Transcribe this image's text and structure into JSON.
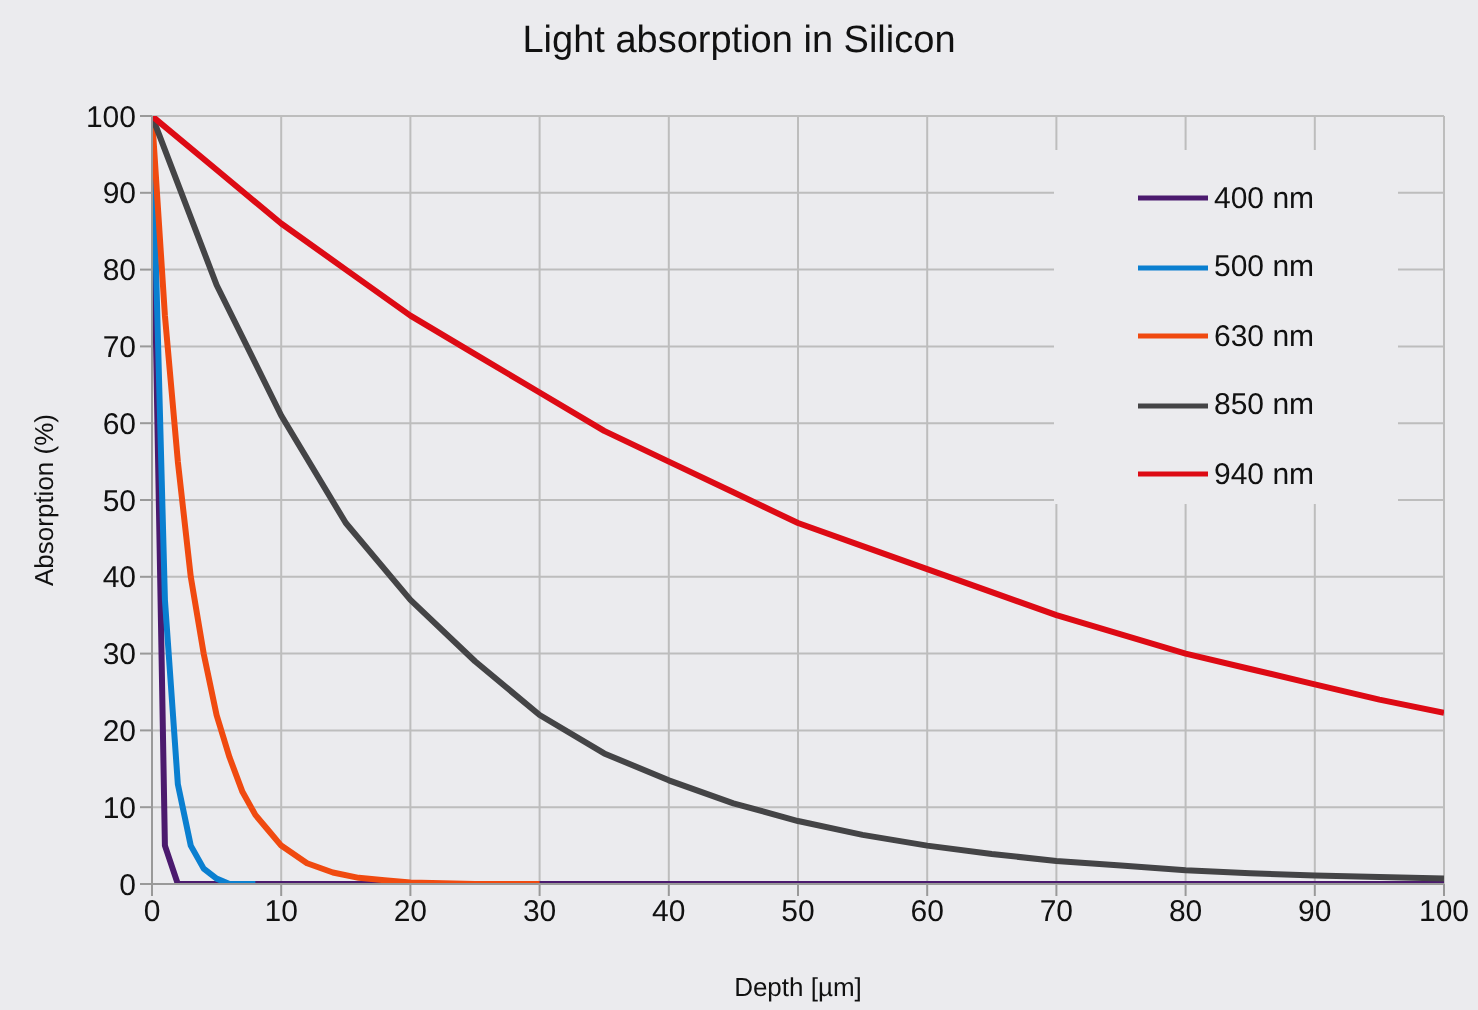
{
  "chart_data": {
    "type": "line",
    "title": "Light absorption in Silicon",
    "xlabel": "Depth [µm]",
    "ylabel": "Absorption (%)",
    "xlim": [
      0,
      100
    ],
    "xticks": [
      0,
      10,
      20,
      30,
      40,
      50,
      60,
      70,
      80,
      90,
      100
    ],
    "ylim": [
      0,
      100
    ],
    "yticks": [
      0,
      10,
      20,
      30,
      40,
      50,
      60,
      70,
      80,
      90,
      100
    ],
    "grid": true,
    "legend": "top right",
    "marker": "none",
    "line_style": "solid",
    "series": [
      {
        "name": "400 nm",
        "color": "#4b1a6e",
        "x": [
          0,
          1,
          2,
          3,
          4,
          5,
          10,
          20,
          30,
          40,
          50,
          60,
          70,
          80,
          90,
          100
        ],
        "values": [
          100,
          5,
          0,
          0,
          0,
          0,
          0,
          0,
          0,
          0,
          0,
          0,
          0,
          0,
          0,
          0
        ]
      },
      {
        "name": "500 nm",
        "color": "#0a7fd0",
        "x": [
          0,
          1,
          2,
          3,
          4,
          5,
          6,
          8
        ],
        "values": [
          100,
          37,
          13,
          5,
          2,
          0.7,
          0,
          0
        ]
      },
      {
        "name": "630 nm",
        "color": "#f04a10",
        "x": [
          0,
          1,
          2,
          3,
          4,
          5,
          6,
          7,
          8,
          9,
          10,
          12,
          14,
          16,
          18,
          20,
          25,
          30
        ],
        "values": [
          100,
          74,
          55,
          40,
          30,
          22,
          16.5,
          12,
          9,
          7,
          5,
          2.7,
          1.5,
          0.8,
          0.5,
          0.2,
          0,
          0
        ]
      },
      {
        "name": "850 nm",
        "color": "#444446",
        "x": [
          0,
          5,
          10,
          15,
          20,
          25,
          30,
          35,
          40,
          45,
          50,
          55,
          60,
          65,
          70,
          75,
          80,
          85,
          90,
          95,
          100
        ],
        "values": [
          100,
          78,
          61,
          47,
          37,
          29,
          22,
          17,
          13.5,
          10.5,
          8.2,
          6.4,
          5,
          3.9,
          3,
          2.4,
          1.8,
          1.4,
          1.1,
          0.9,
          0.7
        ]
      },
      {
        "name": "940 nm",
        "color": "#dd0a14",
        "x": [
          0,
          5,
          10,
          15,
          20,
          25,
          30,
          35,
          40,
          45,
          50,
          55,
          60,
          65,
          70,
          75,
          80,
          85,
          90,
          95,
          100
        ],
        "values": [
          100,
          93,
          86,
          80,
          74,
          69,
          64,
          59,
          55,
          51,
          47,
          44,
          41,
          38,
          35,
          32.5,
          30,
          28,
          26,
          24,
          22.3
        ]
      }
    ]
  }
}
